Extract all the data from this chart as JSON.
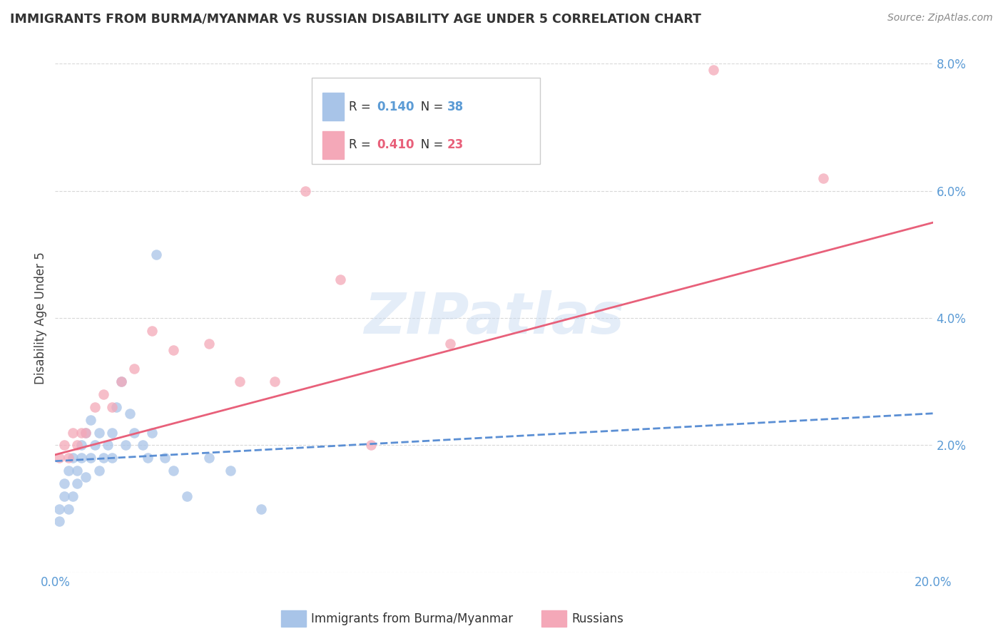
{
  "title": "IMMIGRANTS FROM BURMA/MYANMAR VS RUSSIAN DISABILITY AGE UNDER 5 CORRELATION CHART",
  "source": "Source: ZipAtlas.com",
  "ylabel": "Disability Age Under 5",
  "xlabel": "",
  "xlim": [
    0.0,
    0.2
  ],
  "ylim": [
    0.0,
    0.08
  ],
  "xticks": [
    0.0,
    0.05,
    0.1,
    0.15,
    0.2
  ],
  "xticklabels": [
    "0.0%",
    "",
    "",
    "",
    "20.0%"
  ],
  "yticks": [
    0.0,
    0.02,
    0.04,
    0.06,
    0.08
  ],
  "yticklabels": [
    "",
    "2.0%",
    "4.0%",
    "6.0%",
    "8.0%"
  ],
  "blue_R": "0.140",
  "blue_N": "38",
  "pink_R": "0.410",
  "pink_N": "23",
  "blue_color": "#a8c4e8",
  "pink_color": "#f4a8b8",
  "blue_line_color": "#5b8fd4",
  "pink_line_color": "#e8607a",
  "axis_tick_color": "#5b9bd5",
  "grid_color": "#d8d8d8",
  "title_color": "#333333",
  "blue_scatter_x": [
    0.001,
    0.001,
    0.002,
    0.002,
    0.003,
    0.003,
    0.004,
    0.004,
    0.005,
    0.005,
    0.006,
    0.006,
    0.007,
    0.007,
    0.008,
    0.008,
    0.009,
    0.01,
    0.01,
    0.011,
    0.012,
    0.013,
    0.013,
    0.014,
    0.015,
    0.016,
    0.017,
    0.018,
    0.02,
    0.021,
    0.022,
    0.023,
    0.025,
    0.027,
    0.03,
    0.035,
    0.04,
    0.047
  ],
  "blue_scatter_y": [
    0.008,
    0.01,
    0.012,
    0.014,
    0.01,
    0.016,
    0.012,
    0.018,
    0.014,
    0.016,
    0.018,
    0.02,
    0.015,
    0.022,
    0.018,
    0.024,
    0.02,
    0.016,
    0.022,
    0.018,
    0.02,
    0.022,
    0.018,
    0.026,
    0.03,
    0.02,
    0.025,
    0.022,
    0.02,
    0.018,
    0.022,
    0.05,
    0.018,
    0.016,
    0.012,
    0.018,
    0.016,
    0.01
  ],
  "pink_scatter_x": [
    0.001,
    0.002,
    0.003,
    0.004,
    0.005,
    0.006,
    0.007,
    0.009,
    0.011,
    0.013,
    0.015,
    0.018,
    0.022,
    0.027,
    0.035,
    0.042,
    0.05,
    0.057,
    0.065,
    0.072,
    0.09,
    0.15,
    0.175
  ],
  "pink_scatter_y": [
    0.018,
    0.02,
    0.018,
    0.022,
    0.02,
    0.022,
    0.022,
    0.026,
    0.028,
    0.026,
    0.03,
    0.032,
    0.038,
    0.035,
    0.036,
    0.03,
    0.03,
    0.06,
    0.046,
    0.02,
    0.036,
    0.079,
    0.062
  ],
  "blue_trend_x": [
    0.0,
    0.2
  ],
  "blue_trend_y": [
    0.0175,
    0.025
  ],
  "pink_trend_x": [
    0.0,
    0.2
  ],
  "pink_trend_y": [
    0.0185,
    0.055
  ],
  "watermark_text": "ZIPatlas",
  "watermark_color": "#c5d8f0",
  "watermark_alpha": 0.45,
  "legend_label1": "Immigrants from Burma/Myanmar",
  "legend_label2": "Russians"
}
